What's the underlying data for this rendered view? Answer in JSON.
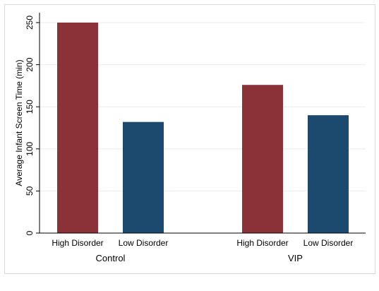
{
  "chart_data": {
    "type": "bar",
    "title": "",
    "xlabel": "",
    "ylabel": "Average Infant Screen Time (min)",
    "ylim": [
      0,
      250
    ],
    "yticks": [
      0,
      50,
      100,
      150,
      200,
      250
    ],
    "grid": true,
    "groups": [
      {
        "label": "Control",
        "bars": [
          {
            "label": "High Disorder",
            "value": 250,
            "color": "#8b3239"
          },
          {
            "label": "Low Disorder",
            "value": 132,
            "color": "#1b4a6e"
          }
        ]
      },
      {
        "label": "VIP",
        "bars": [
          {
            "label": "High Disorder",
            "value": 176,
            "color": "#8b3239"
          },
          {
            "label": "Low Disorder",
            "value": 140,
            "color": "#1b4a6e"
          }
        ]
      }
    ]
  }
}
